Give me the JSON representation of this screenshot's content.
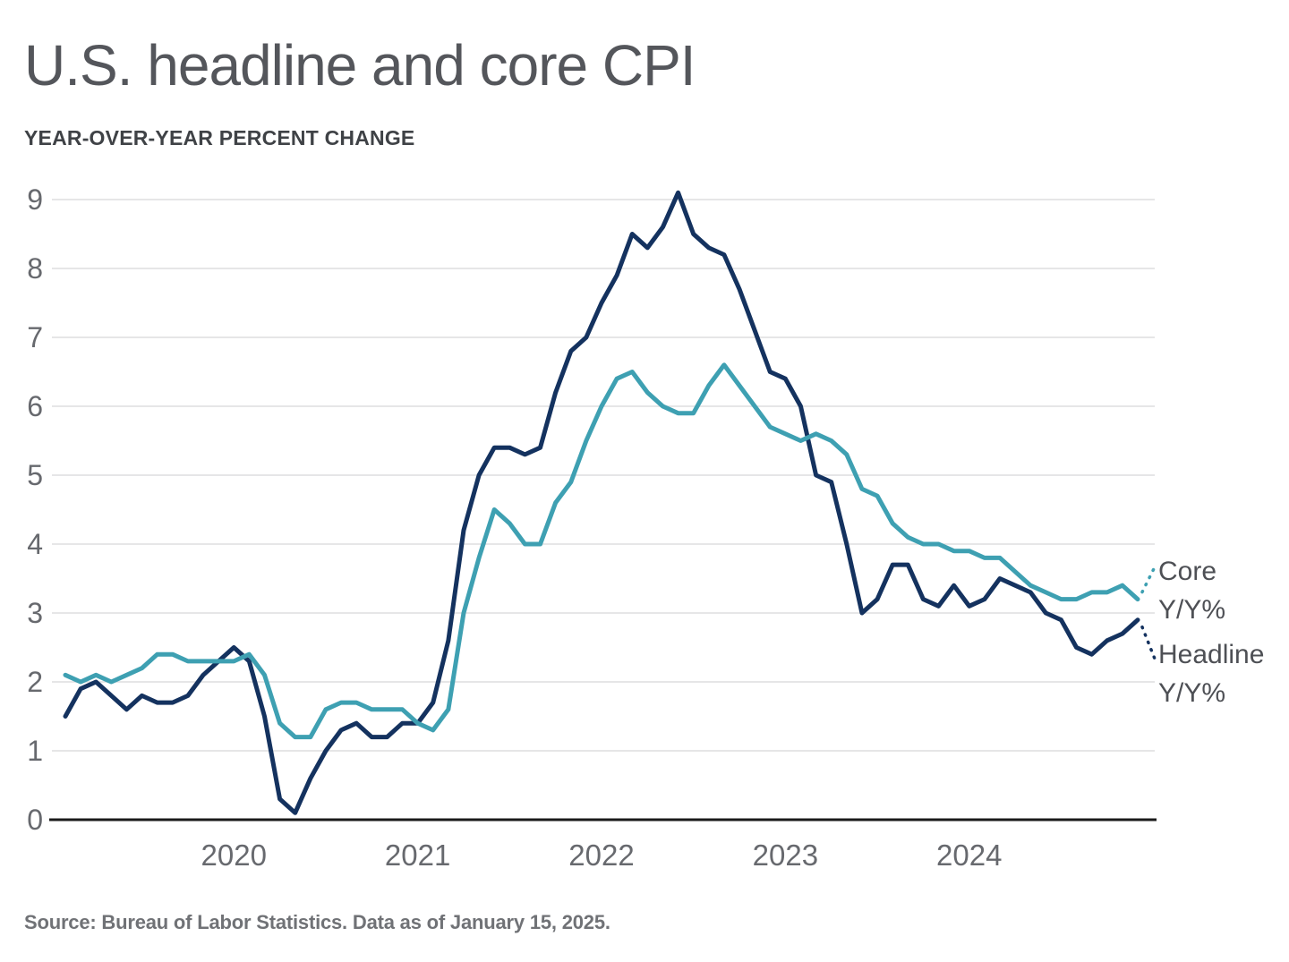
{
  "title": "U.S. headline and core CPI",
  "subtitle": "YEAR-OVER-YEAR PERCENT CHANGE",
  "source": "Source: Bureau of Labor Statistics. Data as of January 15, 2025.",
  "legend": {
    "core": {
      "line1": "Core",
      "line2": "Y/Y%"
    },
    "headline": {
      "line1": "Headline",
      "line2": "Y/Y%"
    }
  },
  "colors": {
    "headline_line": "#14325F",
    "core_line": "#3EA0B2",
    "grid": "#DDDEDF",
    "axis": "#1A1A1A",
    "title_text": "#54565B",
    "subtitle_text": "#3F4246",
    "tick_text": "#67696E",
    "legend_text": "#4E5055",
    "source_text": "#707276"
  },
  "chart_data": {
    "type": "line",
    "title": "U.S. headline and core CPI",
    "subtitle": "YEAR-OVER-YEAR PERCENT CHANGE",
    "xlabel": "",
    "ylabel": "Year-over-year percent change",
    "frequency": "monthly",
    "x_start": "2019-02",
    "x_end": "2024-12",
    "ylim": [
      0,
      9
    ],
    "yticks": [
      0,
      1,
      2,
      3,
      4,
      5,
      6,
      7,
      8,
      9
    ],
    "xlabel_ticks": [
      2020,
      2021,
      2022,
      2023,
      2024
    ],
    "grid": "horizontal",
    "legend_position": "right-of-line-ends",
    "series": [
      {
        "name": "Headline Y/Y%",
        "color": "#14325F",
        "values": [
          1.5,
          1.9,
          2.0,
          1.8,
          1.6,
          1.8,
          1.7,
          1.7,
          1.8,
          2.1,
          2.3,
          2.5,
          2.3,
          1.5,
          0.3,
          0.1,
          0.6,
          1.0,
          1.3,
          1.4,
          1.2,
          1.2,
          1.4,
          1.4,
          1.7,
          2.6,
          4.2,
          5.0,
          5.4,
          5.4,
          5.3,
          5.4,
          6.2,
          6.8,
          7.0,
          7.5,
          7.9,
          8.5,
          8.3,
          8.6,
          9.1,
          8.5,
          8.3,
          8.2,
          7.7,
          7.1,
          6.5,
          6.4,
          6.0,
          5.0,
          4.9,
          4.0,
          3.0,
          3.2,
          3.7,
          3.7,
          3.2,
          3.1,
          3.4,
          3.1,
          3.2,
          3.5,
          3.4,
          3.3,
          3.0,
          2.9,
          2.5,
          2.4,
          2.6,
          2.7,
          2.9
        ]
      },
      {
        "name": "Core Y/Y%",
        "color": "#3EA0B2",
        "values": [
          2.1,
          2.0,
          2.1,
          2.0,
          2.1,
          2.2,
          2.4,
          2.4,
          2.3,
          2.3,
          2.3,
          2.3,
          2.4,
          2.1,
          1.4,
          1.2,
          1.2,
          1.6,
          1.7,
          1.7,
          1.6,
          1.6,
          1.6,
          1.4,
          1.3,
          1.6,
          3.0,
          3.8,
          4.5,
          4.3,
          4.0,
          4.0,
          4.6,
          4.9,
          5.5,
          6.0,
          6.4,
          6.5,
          6.2,
          6.0,
          5.9,
          5.9,
          6.3,
          6.6,
          6.3,
          6.0,
          5.7,
          5.6,
          5.5,
          5.6,
          5.5,
          5.3,
          4.8,
          4.7,
          4.3,
          4.1,
          4.0,
          4.0,
          3.9,
          3.9,
          3.8,
          3.8,
          3.6,
          3.4,
          3.3,
          3.2,
          3.2,
          3.3,
          3.3,
          3.4,
          3.2
        ]
      }
    ]
  }
}
